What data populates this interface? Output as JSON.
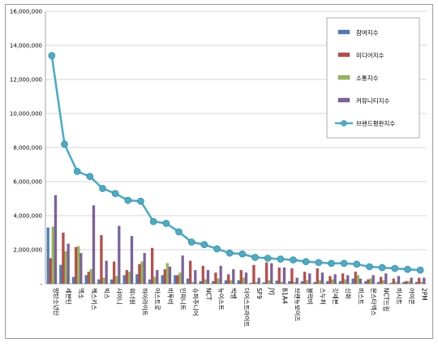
{
  "chart_data": {
    "type": "bar",
    "title": "",
    "xlabel": "",
    "ylabel": "",
    "ylim": [
      0,
      16000000
    ],
    "yticks": [
      "-",
      "2,000,000",
      "4,000,000",
      "6,000,000",
      "8,000,000",
      "10,000,000",
      "12,000,000",
      "14,000,000",
      "16,000,000"
    ],
    "ytick_values": [
      0,
      2000000,
      4000000,
      6000000,
      8000000,
      10000000,
      12000000,
      14000000,
      16000000
    ],
    "grid": true,
    "legend_position": "right",
    "categories": [
      "방탄소년단",
      "세븐틴",
      "엑소",
      "젝스키스",
      "빅스",
      "샤이니",
      "워너원",
      "하이라이트",
      "아스트로",
      "비투비",
      "인피니트",
      "슈퍼주니어",
      "NCT",
      "뉴이스트",
      "빅뱅",
      "더이스트라이트",
      "SF9",
      "JYJ",
      "B1A4",
      "브랜뉴보이즈",
      "블락비",
      "스누퍼",
      "갓세븐",
      "신화",
      "비스트",
      "몬스타엑스",
      "NCT드림",
      "비시트",
      "아이콘",
      "2PM"
    ],
    "series": [
      {
        "name": "참여지수",
        "kind": "bar",
        "color": "#4a7ebb",
        "values": [
          3300000,
          1100000,
          400000,
          500000,
          250000,
          250000,
          500000,
          550000,
          250000,
          500000,
          500000,
          300000,
          150000,
          150000,
          200000,
          200000,
          50000,
          80000,
          180000,
          150000,
          150000,
          100000,
          150000,
          150000,
          300000,
          150000,
          100000,
          50000,
          100000,
          100000
        ]
      },
      {
        "name": "미디어지수",
        "kind": "bar",
        "color": "#be4b48",
        "values": [
          1500000,
          3000000,
          2150000,
          700000,
          2850000,
          1300000,
          800000,
          1150000,
          2100000,
          850000,
          500000,
          1350000,
          1050000,
          650000,
          550000,
          800000,
          1100000,
          1250000,
          950000,
          900000,
          700000,
          900000,
          450000,
          600000,
          700000,
          250000,
          400000,
          300000,
          150000,
          350000
        ]
      },
      {
        "name": "소통지수",
        "kind": "bar",
        "color": "#98b954",
        "values": [
          3350000,
          1900000,
          2200000,
          850000,
          350000,
          450000,
          700000,
          1300000,
          400000,
          1200000,
          650000,
          100000,
          250000,
          300000,
          200000,
          350000,
          100000,
          200000,
          100000,
          100000,
          200000,
          200000,
          250000,
          250000,
          500000,
          300000,
          200000,
          100000,
          150000,
          100000
        ]
      },
      {
        "name": "커뮤니티지수",
        "kind": "bar",
        "color": "#7d60a0",
        "values": [
          5200000,
          2350000,
          1800000,
          4600000,
          1350000,
          3400000,
          2800000,
          1800000,
          800000,
          1000000,
          1650000,
          800000,
          800000,
          1050000,
          850000,
          650000,
          350000,
          1200000,
          950000,
          350000,
          600000,
          650000,
          550000,
          500000,
          300000,
          500000,
          600000,
          450000,
          350000,
          350000
        ]
      },
      {
        "name": "브랜드평판지수",
        "kind": "line",
        "color": "#4bacc6",
        "values": [
          13400000,
          8200000,
          6600000,
          6300000,
          5600000,
          5300000,
          4900000,
          4850000,
          3650000,
          3550000,
          3050000,
          2450000,
          2300000,
          2050000,
          1800000,
          1750000,
          1550000,
          1500000,
          1450000,
          1400000,
          1300000,
          1250000,
          1200000,
          1200000,
          1150000,
          1000000,
          950000,
          900000,
          850000,
          800000
        ]
      }
    ]
  }
}
